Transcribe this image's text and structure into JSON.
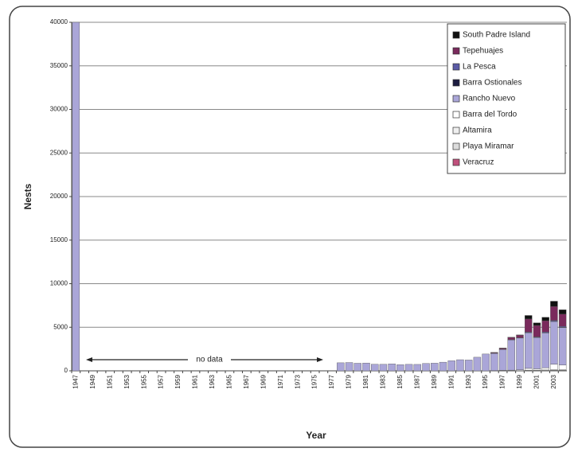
{
  "chart_data": {
    "type": "bar",
    "stacked": true,
    "grid": true,
    "legend": "top-right",
    "y_label": "Nests",
    "x_label": "Year",
    "annotation": "no data",
    "ylim": [
      0,
      40000
    ],
    "yticks": [
      0,
      5000,
      10000,
      15000,
      20000,
      25000,
      30000,
      35000,
      40000
    ],
    "categories": [
      "1947",
      null,
      "1949",
      null,
      "1951",
      null,
      "1953",
      null,
      "1955",
      null,
      "1957",
      null,
      "1959",
      null,
      "1961",
      null,
      "1963",
      null,
      "1965",
      null,
      "1967",
      null,
      "1969",
      null,
      "1971",
      null,
      "1973",
      null,
      "1975",
      null,
      "1977",
      null,
      "1979",
      null,
      "1981",
      null,
      "1983",
      null,
      "1985",
      null,
      "1987",
      null,
      "1989",
      null,
      "1991",
      null,
      "1993",
      null,
      "1995",
      null,
      "1997",
      null,
      "1999",
      null,
      "2001",
      null,
      "2003",
      null
    ],
    "series": [
      {
        "name": "South Padre Island",
        "color": "#111111",
        "values": [
          null,
          null,
          null,
          null,
          null,
          null,
          null,
          null,
          null,
          null,
          null,
          null,
          null,
          null,
          null,
          null,
          null,
          null,
          null,
          null,
          null,
          null,
          null,
          null,
          null,
          null,
          null,
          null,
          null,
          null,
          null,
          0,
          0,
          0,
          0,
          0,
          0,
          0,
          0,
          0,
          0,
          0,
          0,
          0,
          0,
          0,
          0,
          0,
          0,
          10,
          20,
          20,
          20,
          400,
          300,
          400,
          600,
          500
        ]
      },
      {
        "name": "Tepehuajes",
        "color": "#7a2a5c",
        "values": [
          null,
          null,
          null,
          null,
          null,
          null,
          null,
          null,
          null,
          null,
          null,
          null,
          null,
          null,
          null,
          null,
          null,
          null,
          null,
          null,
          null,
          null,
          null,
          null,
          null,
          null,
          null,
          null,
          null,
          null,
          null,
          0,
          0,
          0,
          0,
          0,
          0,
          0,
          0,
          0,
          0,
          0,
          0,
          0,
          0,
          0,
          0,
          0,
          0,
          80,
          120,
          250,
          300,
          1500,
          1300,
          1300,
          1600,
          1400
        ]
      },
      {
        "name": "La Pesca",
        "color": "#5b5ba6",
        "values": [
          null,
          null,
          null,
          null,
          null,
          null,
          null,
          null,
          null,
          null,
          null,
          null,
          null,
          null,
          null,
          null,
          null,
          null,
          null,
          null,
          null,
          null,
          null,
          null,
          null,
          null,
          null,
          null,
          null,
          null,
          null,
          0,
          0,
          0,
          0,
          0,
          0,
          0,
          0,
          0,
          0,
          0,
          0,
          0,
          0,
          0,
          0,
          0,
          0,
          20,
          30,
          40,
          40,
          60,
          60,
          80,
          100,
          120
        ]
      },
      {
        "name": "Barra Ostionales",
        "color": "#1c1c40",
        "values": [
          null,
          null,
          null,
          null,
          null,
          null,
          null,
          null,
          null,
          null,
          null,
          null,
          null,
          null,
          null,
          null,
          null,
          null,
          null,
          null,
          null,
          null,
          null,
          null,
          null,
          null,
          null,
          null,
          null,
          null,
          null,
          0,
          0,
          0,
          0,
          0,
          0,
          0,
          0,
          0,
          0,
          0,
          0,
          0,
          0,
          0,
          0,
          0,
          0,
          0,
          0,
          0,
          0,
          10,
          20,
          20,
          30,
          30
        ]
      },
      {
        "name": "Rancho Nuevo",
        "color": "#aaa6d8",
        "values": [
          40000,
          null,
          null,
          null,
          null,
          null,
          null,
          null,
          null,
          null,
          null,
          null,
          null,
          null,
          null,
          null,
          null,
          null,
          null,
          null,
          null,
          null,
          null,
          null,
          null,
          null,
          null,
          null,
          null,
          null,
          null,
          924,
          954,
          868,
          897,
          750,
          746,
          798,
          702,
          744,
          737,
          842,
          878,
          992,
          1155,
          1275,
          1241,
          1562,
          1930,
          1970,
          2387,
          3468,
          3650,
          4100,
          3600,
          4000,
          4900,
          4300
        ]
      },
      {
        "name": "Barra del Tordo",
        "color": "#ffffff",
        "values": [
          null,
          null,
          null,
          null,
          null,
          null,
          null,
          null,
          null,
          null,
          null,
          null,
          null,
          null,
          null,
          null,
          null,
          null,
          null,
          null,
          null,
          null,
          null,
          null,
          null,
          null,
          null,
          null,
          null,
          null,
          null,
          0,
          0,
          0,
          0,
          0,
          0,
          0,
          0,
          0,
          0,
          0,
          0,
          0,
          0,
          0,
          0,
          0,
          0,
          20,
          40,
          60,
          80,
          200,
          150,
          250,
          600,
          500
        ]
      },
      {
        "name": "Altamira",
        "color": "#efefef",
        "values": [
          null,
          null,
          null,
          null,
          null,
          null,
          null,
          null,
          null,
          null,
          null,
          null,
          null,
          null,
          null,
          null,
          null,
          null,
          null,
          null,
          null,
          null,
          null,
          null,
          null,
          null,
          null,
          null,
          null,
          null,
          null,
          0,
          0,
          0,
          0,
          0,
          0,
          0,
          0,
          0,
          0,
          0,
          0,
          0,
          0,
          0,
          0,
          0,
          0,
          10,
          20,
          20,
          30,
          50,
          50,
          60,
          100,
          100
        ]
      },
      {
        "name": "Playa Miramar",
        "color": "#dcdcdc",
        "values": [
          null,
          null,
          null,
          null,
          null,
          null,
          null,
          null,
          null,
          null,
          null,
          null,
          null,
          null,
          null,
          null,
          null,
          null,
          null,
          null,
          null,
          null,
          null,
          null,
          null,
          null,
          null,
          null,
          null,
          null,
          null,
          0,
          0,
          0,
          0,
          0,
          0,
          0,
          0,
          0,
          0,
          0,
          0,
          0,
          0,
          0,
          0,
          0,
          0,
          0,
          0,
          0,
          0,
          20,
          20,
          30,
          40,
          40
        ]
      },
      {
        "name": "Veracruz",
        "color": "#c0507c",
        "values": [
          null,
          null,
          null,
          null,
          null,
          null,
          null,
          null,
          null,
          null,
          null,
          null,
          null,
          null,
          null,
          null,
          null,
          null,
          null,
          null,
          null,
          null,
          null,
          null,
          null,
          null,
          null,
          null,
          null,
          null,
          null,
          0,
          0,
          0,
          0,
          0,
          0,
          0,
          0,
          0,
          0,
          0,
          0,
          0,
          0,
          0,
          0,
          0,
          0,
          0,
          0,
          0,
          0,
          10,
          10,
          10,
          20,
          20
        ]
      }
    ]
  }
}
